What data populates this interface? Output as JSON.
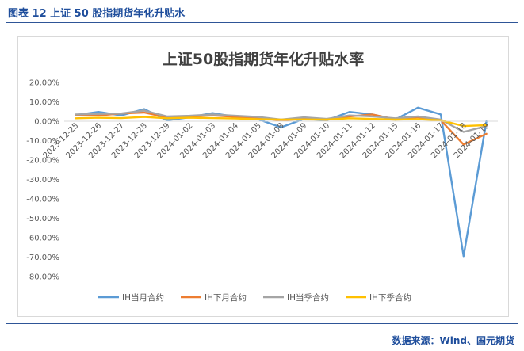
{
  "caption": "图表 12  上证 50 股指期货年化升贴水",
  "source": "数据来源：Wind、国元期货",
  "chart_data": {
    "type": "line",
    "title": "上证50股指期货年化升贴水率",
    "categories": [
      "2023-12-25",
      "2023-12-26",
      "2023-12-27",
      "2023-12-28",
      "2023-12-29",
      "2024-01-02",
      "2024-01-03",
      "2024-01-04",
      "2024-01-05",
      "2024-01-08",
      "2024-01-09",
      "2024-01-10",
      "2024-01-11",
      "2024-01-12",
      "2024-01-15",
      "2024-01-16",
      "2024-01-17",
      "2024-01-18",
      "2024-01-19"
    ],
    "x_tick_labels": [
      "2023-12-25",
      "2023-12-26",
      "2023-12-27",
      "2023-12-28",
      "2023-12-29",
      "2024-01-02",
      "2024-01-03",
      "2024-01-04",
      "2024-01-05",
      "2024-01-08",
      "2024-01-09",
      "2024-01-10",
      "2024-01-11",
      "2024-01-12",
      "2024-01-15",
      "2024-01-16",
      "2024-01-17",
      "2024-01-18",
      "2024-01-19"
    ],
    "y_ticks": [
      20,
      10,
      0,
      -10,
      -20,
      -30,
      -40,
      -50,
      -60,
      -70,
      -80
    ],
    "y_tick_labels": [
      "20.00%",
      "10.00%",
      "0.00%",
      "-10.00%",
      "-20.00%",
      "-30.00%",
      "-40.00%",
      "-50.00%",
      "-60.00%",
      "-70.00%",
      "-80.00%"
    ],
    "ylim": [
      -80,
      20
    ],
    "grid": false,
    "legend_position": "bottom",
    "series": [
      {
        "name": "IH当月合约",
        "color": "#5b9bd5",
        "values": [
          3.2,
          4.8,
          3.0,
          6.3,
          0.5,
          2.0,
          4.2,
          2.2,
          1.0,
          -3.2,
          1.2,
          0.5,
          4.8,
          3.5,
          0.8,
          7.0,
          3.5,
          -69.5,
          0.0
        ]
      },
      {
        "name": "IH下月合约",
        "color": "#ed7d31",
        "values": [
          3.0,
          3.0,
          4.0,
          4.5,
          2.0,
          2.5,
          3.0,
          2.2,
          1.5,
          0.5,
          1.2,
          0.8,
          2.5,
          3.5,
          1.0,
          2.0,
          0.5,
          -12.0,
          -6.5
        ]
      },
      {
        "name": "IH当季合约",
        "color": "#a5a5a5",
        "values": [
          3.5,
          3.8,
          4.0,
          5.5,
          2.5,
          2.8,
          3.5,
          2.8,
          2.2,
          0.8,
          2.0,
          1.2,
          3.0,
          2.5,
          1.5,
          2.5,
          0.8,
          -5.5,
          -2.5
        ]
      },
      {
        "name": "IH下季合约",
        "color": "#ffc000",
        "values": [
          1.5,
          1.8,
          1.6,
          2.2,
          1.5,
          1.8,
          1.6,
          1.4,
          1.0,
          0.8,
          0.9,
          0.8,
          1.5,
          1.2,
          0.8,
          1.0,
          0.5,
          -2.5,
          -2.0
        ]
      }
    ]
  }
}
